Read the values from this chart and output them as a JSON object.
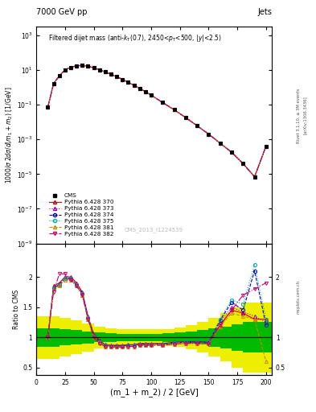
{
  "title_left": "7000 GeV pp",
  "title_right": "Jets",
  "annotation": "Filtered dijet mass (anti-k_{T}(0.7), 2450<p_{T}<500, |y|<2.5)",
  "cms_label": "CMS_2013_I1224539",
  "xlabel": "(m_1 + m_2) / 2 [GeV]",
  "ylabel_top": "1000/σ 2dσ/d(m_1 + m_2) [1/GeV]",
  "ylabel_bot": "Ratio to CMS",
  "x_data": [
    10,
    15,
    20,
    25,
    30,
    35,
    40,
    45,
    50,
    55,
    60,
    65,
    70,
    75,
    80,
    85,
    90,
    95,
    100,
    110,
    120,
    130,
    140,
    150,
    160,
    170,
    180,
    190,
    200
  ],
  "cms_y": [
    0.07,
    1.6,
    4.5,
    10,
    14,
    17,
    18,
    16,
    13,
    10,
    7.5,
    5.5,
    4.0,
    2.8,
    1.9,
    1.3,
    0.85,
    0.55,
    0.35,
    0.13,
    0.05,
    0.018,
    0.006,
    0.002,
    0.0006,
    0.00018,
    4e-05,
    7e-06,
    0.0004
  ],
  "py370_y": [
    0.07,
    1.6,
    4.5,
    10,
    14,
    17,
    18,
    16,
    13,
    10,
    7.5,
    5.5,
    4.0,
    2.8,
    1.9,
    1.3,
    0.85,
    0.55,
    0.35,
    0.13,
    0.05,
    0.018,
    0.006,
    0.002,
    0.0006,
    0.00018,
    4e-05,
    7e-06,
    0.0004
  ],
  "py373_y": [
    0.07,
    1.6,
    4.5,
    10,
    14,
    17,
    18,
    16,
    13,
    10,
    7.5,
    5.5,
    4.0,
    2.8,
    1.9,
    1.3,
    0.85,
    0.55,
    0.35,
    0.13,
    0.05,
    0.018,
    0.006,
    0.002,
    0.0006,
    0.00018,
    4e-05,
    7e-06,
    0.0004
  ],
  "py374_y": [
    0.07,
    1.6,
    4.5,
    10,
    14,
    17,
    18,
    16,
    13,
    10,
    7.5,
    5.5,
    4.0,
    2.8,
    1.9,
    1.3,
    0.85,
    0.55,
    0.35,
    0.13,
    0.05,
    0.018,
    0.006,
    0.002,
    0.0006,
    0.00018,
    4e-05,
    7e-06,
    0.0004
  ],
  "py375_y": [
    0.07,
    1.6,
    4.5,
    10,
    14,
    17,
    18,
    16,
    13,
    10,
    7.5,
    5.5,
    4.0,
    2.8,
    1.9,
    1.3,
    0.85,
    0.55,
    0.35,
    0.13,
    0.05,
    0.018,
    0.006,
    0.002,
    0.0006,
    0.00018,
    4e-05,
    7e-06,
    0.0004
  ],
  "py381_y": [
    0.07,
    1.6,
    4.5,
    10,
    14,
    17,
    18,
    16,
    13,
    10,
    7.5,
    5.5,
    4.0,
    2.8,
    1.9,
    1.3,
    0.85,
    0.55,
    0.35,
    0.13,
    0.05,
    0.018,
    0.006,
    0.002,
    0.0006,
    0.00018,
    4e-05,
    7e-06,
    0.0004
  ],
  "py382_y": [
    0.07,
    1.6,
    4.5,
    10,
    14,
    17,
    18,
    16,
    13,
    10,
    7.5,
    5.5,
    4.0,
    2.8,
    1.9,
    1.3,
    0.85,
    0.55,
    0.35,
    0.13,
    0.05,
    0.018,
    0.006,
    0.002,
    0.0006,
    0.00018,
    4e-05,
    7e-06,
    0.0004
  ],
  "ratio_x": [
    10,
    15,
    20,
    25,
    30,
    35,
    40,
    45,
    50,
    55,
    60,
    65,
    70,
    75,
    80,
    85,
    90,
    95,
    100,
    110,
    120,
    130,
    140,
    150,
    160,
    170,
    180,
    190,
    200
  ],
  "ratio370": [
    1.0,
    1.85,
    1.9,
    2.0,
    2.0,
    1.9,
    1.75,
    1.35,
    1.05,
    0.95,
    0.88,
    0.87,
    0.87,
    0.87,
    0.88,
    0.88,
    0.9,
    0.9,
    0.9,
    0.9,
    0.92,
    0.93,
    0.93,
    0.92,
    1.2,
    1.45,
    1.4,
    1.3,
    1.3
  ],
  "ratio373": [
    1.0,
    1.83,
    1.88,
    1.98,
    1.98,
    1.88,
    1.73,
    1.33,
    1.03,
    0.93,
    0.87,
    0.86,
    0.86,
    0.86,
    0.87,
    0.87,
    0.89,
    0.89,
    0.89,
    0.89,
    0.91,
    0.92,
    0.92,
    0.91,
    1.25,
    1.5,
    1.42,
    1.35,
    1.25
  ],
  "ratio374": [
    1.0,
    1.82,
    1.87,
    1.97,
    1.97,
    1.87,
    1.72,
    1.32,
    1.02,
    0.93,
    0.87,
    0.86,
    0.86,
    0.86,
    0.87,
    0.87,
    0.89,
    0.89,
    0.89,
    0.89,
    0.91,
    0.92,
    0.92,
    0.92,
    1.28,
    1.58,
    1.45,
    2.1,
    1.2
  ],
  "ratio375": [
    1.0,
    1.82,
    1.87,
    1.97,
    1.97,
    1.87,
    1.72,
    1.32,
    1.02,
    0.93,
    0.87,
    0.86,
    0.86,
    0.86,
    0.87,
    0.87,
    0.89,
    0.89,
    0.89,
    0.89,
    0.91,
    0.92,
    0.92,
    0.92,
    1.3,
    1.62,
    1.55,
    2.2,
    1.3
  ],
  "ratio381": [
    1.0,
    1.8,
    1.85,
    1.95,
    1.95,
    1.85,
    1.7,
    1.3,
    1.0,
    0.91,
    0.85,
    0.84,
    0.84,
    0.84,
    0.85,
    0.85,
    0.87,
    0.87,
    0.87,
    0.87,
    0.89,
    0.9,
    0.9,
    0.9,
    1.18,
    1.4,
    1.35,
    1.3,
    0.6
  ],
  "ratio382": [
    1.0,
    1.75,
    2.05,
    2.05,
    1.95,
    1.85,
    1.7,
    1.3,
    1.0,
    0.9,
    0.85,
    0.84,
    0.84,
    0.84,
    0.85,
    0.85,
    0.87,
    0.87,
    0.87,
    0.87,
    0.89,
    0.9,
    0.9,
    0.9,
    1.2,
    1.45,
    1.7,
    1.8,
    1.9
  ],
  "green_band_x": [
    0,
    10,
    10,
    20,
    20,
    30,
    30,
    40,
    40,
    50,
    50,
    60,
    60,
    70,
    70,
    80,
    80,
    90,
    90,
    100,
    100,
    110,
    110,
    120,
    120,
    130,
    130,
    140,
    140,
    150,
    150,
    160,
    160,
    170,
    170,
    180,
    180,
    205
  ],
  "green_band_lo": [
    0.85,
    0.85,
    0.85,
    0.85,
    0.87,
    0.87,
    0.88,
    0.88,
    0.9,
    0.9,
    0.92,
    0.92,
    0.93,
    0.93,
    0.94,
    0.94,
    0.94,
    0.94,
    0.94,
    0.94,
    0.94,
    0.94,
    0.93,
    0.93,
    0.92,
    0.92,
    0.9,
    0.9,
    0.88,
    0.88,
    0.85,
    0.85,
    0.82,
    0.82,
    0.78,
    0.78,
    0.75,
    0.75
  ],
  "green_band_hi": [
    1.15,
    1.15,
    1.15,
    1.15,
    1.13,
    1.13,
    1.12,
    1.12,
    1.1,
    1.1,
    1.08,
    1.08,
    1.07,
    1.07,
    1.06,
    1.06,
    1.06,
    1.06,
    1.06,
    1.06,
    1.06,
    1.06,
    1.07,
    1.07,
    1.08,
    1.08,
    1.1,
    1.1,
    1.12,
    1.12,
    1.15,
    1.15,
    1.18,
    1.18,
    1.22,
    1.22,
    1.25,
    1.25
  ],
  "yellow_band_x": [
    0,
    10,
    10,
    20,
    20,
    30,
    30,
    40,
    40,
    50,
    50,
    60,
    60,
    70,
    70,
    80,
    80,
    90,
    90,
    100,
    100,
    110,
    110,
    120,
    120,
    130,
    130,
    140,
    140,
    150,
    150,
    160,
    160,
    170,
    170,
    180,
    180,
    205
  ],
  "yellow_band_lo": [
    0.65,
    0.65,
    0.65,
    0.65,
    0.68,
    0.68,
    0.72,
    0.72,
    0.77,
    0.77,
    0.82,
    0.82,
    0.85,
    0.85,
    0.86,
    0.86,
    0.87,
    0.87,
    0.87,
    0.87,
    0.87,
    0.87,
    0.86,
    0.86,
    0.84,
    0.84,
    0.8,
    0.8,
    0.75,
    0.75,
    0.68,
    0.68,
    0.6,
    0.6,
    0.5,
    0.5,
    0.42,
    0.42
  ],
  "yellow_band_hi": [
    1.35,
    1.35,
    1.35,
    1.35,
    1.32,
    1.32,
    1.28,
    1.28,
    1.23,
    1.23,
    1.18,
    1.18,
    1.15,
    1.15,
    1.14,
    1.14,
    1.13,
    1.13,
    1.13,
    1.13,
    1.13,
    1.13,
    1.14,
    1.14,
    1.16,
    1.16,
    1.2,
    1.2,
    1.25,
    1.25,
    1.32,
    1.32,
    1.4,
    1.4,
    1.5,
    1.5,
    1.58,
    1.58
  ],
  "color_370": "#cc0000",
  "color_373": "#9900cc",
  "color_374": "#0000cc",
  "color_375": "#00aaaa",
  "color_381": "#cc8800",
  "color_382": "#cc0066",
  "color_cms": "#000000",
  "color_green": "#00bb00",
  "color_yellow": "#eeee00",
  "bg_color": "#ffffff"
}
